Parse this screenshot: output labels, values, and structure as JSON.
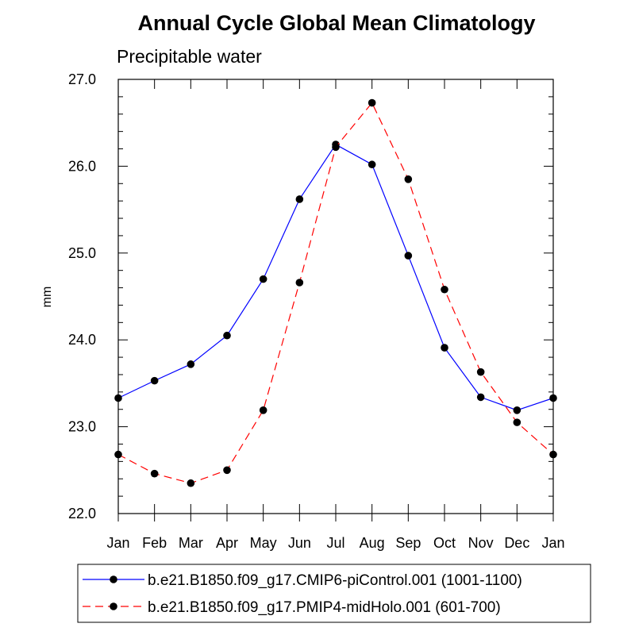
{
  "chart_data": {
    "type": "line",
    "title": "Annual Cycle Global Mean Climatology",
    "subtitle": "Precipitable water",
    "xlabel": "",
    "ylabel": "mm",
    "categories": [
      "Jan",
      "Feb",
      "Mar",
      "Apr",
      "May",
      "Jun",
      "Jul",
      "Aug",
      "Sep",
      "Oct",
      "Nov",
      "Dec",
      "Jan"
    ],
    "ylim": [
      22.0,
      27.0
    ],
    "yticks": [
      "22.0",
      "23.0",
      "24.0",
      "25.0",
      "26.0",
      "27.0"
    ],
    "grid": false,
    "legend_position": "bottom",
    "series": [
      {
        "name": "b.e21.B1850.f09_g17.CMIP6-piControl.001 (1001-1100)",
        "color": "#0000ff",
        "dash": "solid",
        "values": [
          23.33,
          23.53,
          23.72,
          24.05,
          24.7,
          25.62,
          26.25,
          26.02,
          24.97,
          23.91,
          23.34,
          23.19,
          23.33
        ]
      },
      {
        "name": "b.e21.B1850.f09_g17.PMIP4-midHolo.001 (601-700)",
        "color": "#ff0000",
        "dash": "dashed",
        "values": [
          22.68,
          22.46,
          22.35,
          22.5,
          23.19,
          24.66,
          26.22,
          26.73,
          25.85,
          24.58,
          23.63,
          23.05,
          22.68
        ]
      }
    ]
  }
}
